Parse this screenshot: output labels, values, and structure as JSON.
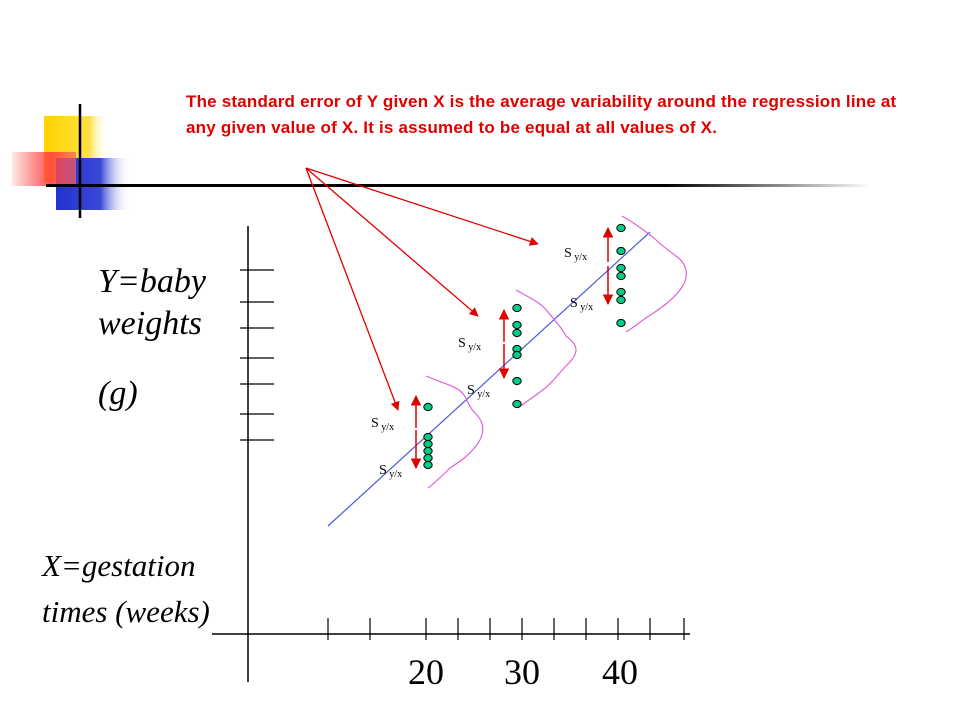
{
  "caption": "The standard error of Y given X is the average variability around the regression line at any given value of X.  It is assumed to be equal at all values of X.",
  "y_axis_label": {
    "line1": "Y=baby",
    "line2": "weights",
    "line3": "(g)"
  },
  "x_axis_label": {
    "line1": "X=gestation",
    "line2": "times (weeks)"
  },
  "x_ticks": [
    "20",
    "30",
    "40"
  ],
  "sy_label": {
    "main": "S",
    "sub": "y/x"
  },
  "colors": {
    "caption": "#e00000",
    "arrows": "#e00000",
    "regression_line": "#4a5ad8",
    "points_fill": "#00cc88",
    "bell_curves": "#e060d8",
    "decor_yellow": "#ffd200",
    "decor_blue": "#2233cc",
    "decor_red": "#ff3030"
  }
}
